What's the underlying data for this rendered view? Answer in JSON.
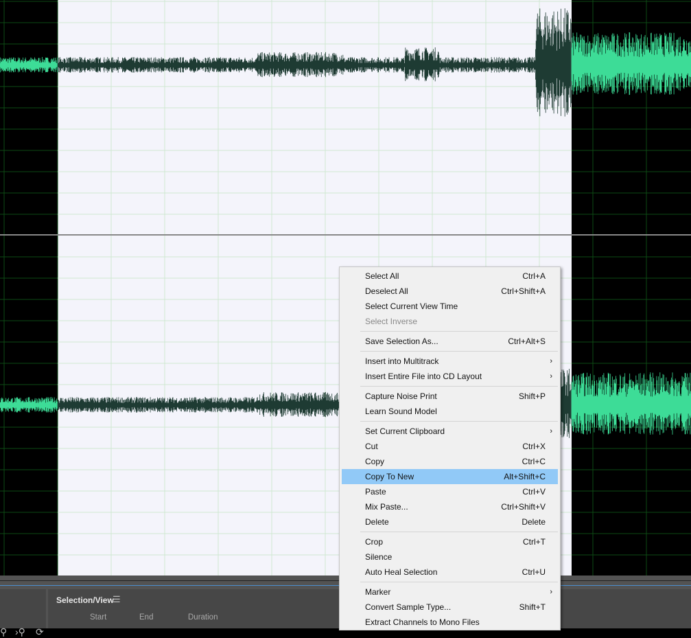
{
  "colors": {
    "waveform_selected": "#1e3b33",
    "waveform_unselected": "#3ddc97",
    "selection_bg": "#f4f4fb",
    "highlight": "#91c9f7",
    "accent_line": "#4a8fd0"
  },
  "panel": {
    "title": "Selection/View",
    "menu_icon": "hamburger-icon",
    "columns": [
      "Start",
      "End",
      "Duration"
    ]
  },
  "menu": {
    "items": [
      {
        "label": "Select All",
        "shortcut": "Ctrl+A"
      },
      {
        "label": "Deselect All",
        "shortcut": "Ctrl+Shift+A"
      },
      {
        "label": "Select Current View Time",
        "shortcut": ""
      },
      {
        "label": "Select Inverse",
        "shortcut": "",
        "disabled": true
      },
      {
        "sep": true
      },
      {
        "label": "Save Selection As...",
        "shortcut": "Ctrl+Alt+S"
      },
      {
        "sep": true
      },
      {
        "label": "Insert into Multitrack",
        "shortcut": "",
        "submenu": true
      },
      {
        "label": "Insert Entire File into CD Layout",
        "shortcut": "",
        "submenu": true
      },
      {
        "sep": true
      },
      {
        "label": "Capture Noise Print",
        "shortcut": "Shift+P"
      },
      {
        "label": "Learn Sound Model",
        "shortcut": ""
      },
      {
        "sep": true
      },
      {
        "label": "Set Current Clipboard",
        "shortcut": "",
        "submenu": true
      },
      {
        "label": "Cut",
        "shortcut": "Ctrl+X"
      },
      {
        "label": "Copy",
        "shortcut": "Ctrl+C"
      },
      {
        "label": "Copy To New",
        "shortcut": "Alt+Shift+C",
        "highlighted": true
      },
      {
        "label": "Paste",
        "shortcut": "Ctrl+V"
      },
      {
        "label": "Mix Paste...",
        "shortcut": "Ctrl+Shift+V"
      },
      {
        "label": "Delete",
        "shortcut": "Delete"
      },
      {
        "sep": true
      },
      {
        "label": "Crop",
        "shortcut": "Ctrl+T"
      },
      {
        "label": "Silence",
        "shortcut": ""
      },
      {
        "label": "Auto Heal Selection",
        "shortcut": "Ctrl+U"
      },
      {
        "sep": true
      },
      {
        "label": "Marker",
        "shortcut": "",
        "submenu": true
      },
      {
        "label": "Convert Sample Type...",
        "shortcut": "Shift+T"
      },
      {
        "label": "Extract Channels to Mono Files",
        "shortcut": ""
      }
    ]
  }
}
